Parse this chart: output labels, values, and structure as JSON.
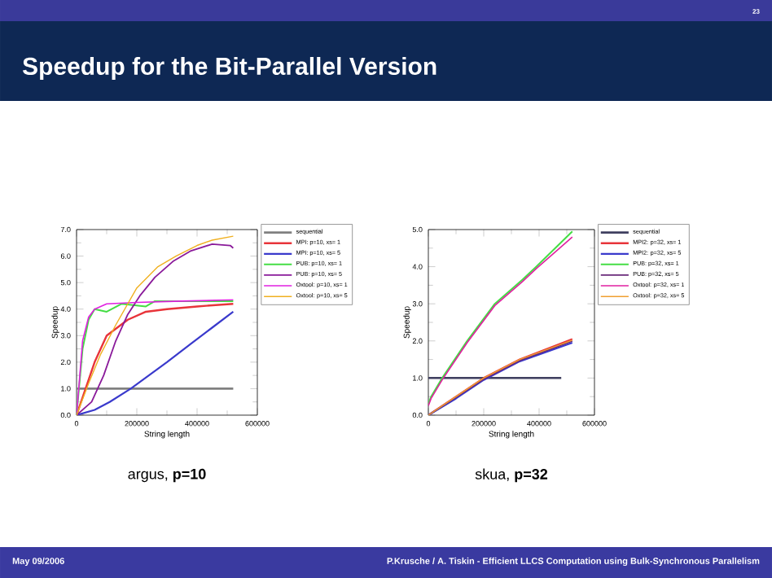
{
  "chart_data": [
    {
      "type": "line",
      "title": "argus, **p=10**",
      "xlabel": "String length",
      "ylabel": "Speedup",
      "xlim": [
        0,
        600000
      ],
      "xticks": [
        0,
        200000,
        400000,
        600000
      ],
      "ylim": [
        0,
        7
      ],
      "yticks": [
        {
          "value": 0,
          "label": "0.0"
        },
        {
          "value": 1,
          "label": "1.0"
        },
        {
          "value": 2,
          "label": "2.0"
        },
        {
          "value": 3,
          "label": "3.0"
        },
        {
          "value": 4,
          "label": "4.0"
        },
        {
          "value": 5,
          "label": "5.0"
        },
        {
          "value": 6,
          "label": "6.0"
        },
        {
          "value": 7,
          "label": "7.0"
        }
      ],
      "legend": "right",
      "annotations": [
        "Speedup for the Bit-Parallel Version",
        "23",
        "May 09/2006",
        "P.Krusche / A. Tiskin - Efficient LLCS Computation using Bulk-Synchronous Parallelism"
      ],
      "series": [
        {
          "name": "sequential",
          "color": "#808080",
          "x": [
            0,
            520000
          ],
          "values": [
            1,
            1
          ]
        },
        {
          "name": "MPI: p=10, xs= 1",
          "color": "#e8343a",
          "x": [
            0,
            30000,
            60000,
            100000,
            170000,
            230000,
            300000,
            400000,
            520000
          ],
          "values": [
            0,
            1.0,
            2.0,
            3.0,
            3.6,
            3.9,
            4.0,
            4.1,
            4.2
          ]
        },
        {
          "name": "MPI: p=10, xs= 5",
          "color": "#3a3acc",
          "x": [
            0,
            60000,
            110000,
            180000,
            240000,
            300000,
            380000,
            450000,
            520000
          ],
          "values": [
            0,
            0.2,
            0.5,
            1.0,
            1.5,
            2.0,
            2.7,
            3.3,
            3.9
          ]
        },
        {
          "name": "PUB: p=10, xs= 1",
          "color": "#44dd44",
          "x": [
            0,
            20000,
            40000,
            60000,
            100000,
            150000,
            230000,
            260000,
            520000
          ],
          "values": [
            0,
            2.5,
            3.6,
            4.0,
            3.9,
            4.2,
            4.1,
            4.3,
            4.3
          ]
        },
        {
          "name": "PUB: p=10, xs= 5",
          "color": "#8a1a9a",
          "x": [
            0,
            50000,
            90000,
            130000,
            170000,
            210000,
            260000,
            320000,
            380000,
            450000,
            510000,
            520000
          ],
          "values": [
            0,
            0.5,
            1.5,
            2.8,
            3.8,
            4.5,
            5.2,
            5.8,
            6.2,
            6.45,
            6.4,
            6.3
          ]
        },
        {
          "name": "Oxtool: p=10, xs= 1",
          "color": "#e020e0",
          "x": [
            0,
            20000,
            40000,
            60000,
            100000,
            200000,
            350000,
            520000
          ],
          "values": [
            0,
            2.8,
            3.7,
            4.0,
            4.2,
            4.25,
            4.3,
            4.35
          ]
        },
        {
          "name": "Oxtool: p=10, xs= 5",
          "color": "#f0b020",
          "x": [
            0,
            40000,
            80000,
            130000,
            200000,
            270000,
            330000,
            400000,
            450000,
            520000
          ],
          "values": [
            0,
            1.2,
            2.3,
            3.4,
            4.8,
            5.6,
            6.0,
            6.4,
            6.6,
            6.75
          ]
        }
      ]
    },
    {
      "type": "line",
      "title": "skua, **p=32**",
      "xlabel": "String length",
      "ylabel": "Speedup",
      "xlim": [
        0,
        600000
      ],
      "xticks": [
        0,
        200000,
        400000,
        600000
      ],
      "ylim": [
        0,
        5
      ],
      "yticks": [
        {
          "value": 0,
          "label": "0.0"
        },
        {
          "value": 1,
          "label": "1.0"
        },
        {
          "value": 2,
          "label": "2.0"
        },
        {
          "value": 3,
          "label": "3.0"
        },
        {
          "value": 4,
          "label": "4.0"
        },
        {
          "value": 5,
          "label": "5.0"
        }
      ],
      "legend": "right",
      "series": [
        {
          "name": "sequential",
          "color": "#404060",
          "x": [
            0,
            480000
          ],
          "values": [
            1,
            1
          ]
        },
        {
          "name": "MPI2: p=32, xs= 1",
          "color": "#e8343a",
          "x": [
            0,
            100000,
            200000,
            330000,
            520000
          ],
          "values": [
            0,
            0.5,
            1.0,
            1.5,
            2.05
          ]
        },
        {
          "name": "MPI2: p=32, xs= 5",
          "color": "#3a3acc",
          "x": [
            0,
            100000,
            200000,
            330000,
            520000
          ],
          "values": [
            0,
            0.45,
            0.95,
            1.45,
            1.95
          ]
        },
        {
          "name": "PUB: p=32, xs= 1",
          "color": "#44dd44",
          "x": [
            0,
            10000,
            50000,
            140000,
            240000,
            340000,
            390000,
            520000
          ],
          "values": [
            0.3,
            0.5,
            1.0,
            2.0,
            3.0,
            3.65,
            4.0,
            4.95
          ]
        },
        {
          "name": "PUB: p=32, xs= 5",
          "color": "#6a2a7a",
          "x": [
            0,
            100000,
            200000,
            330000,
            520000
          ],
          "values": [
            0,
            0.48,
            0.97,
            1.47,
            2.0
          ]
        },
        {
          "name": "Oxtool: p=32, xs= 1",
          "color": "#e020a0",
          "x": [
            0,
            10000,
            50000,
            140000,
            240000,
            340000,
            390000,
            520000
          ],
          "values": [
            0.25,
            0.45,
            0.95,
            1.95,
            2.95,
            3.6,
            3.95,
            4.8
          ]
        },
        {
          "name": "Oxtool: p=32, xs= 5",
          "color": "#f0a030",
          "x": [
            0,
            100000,
            200000,
            330000,
            520000
          ],
          "values": [
            0,
            0.5,
            1.0,
            1.5,
            2.02
          ]
        }
      ]
    }
  ]
}
